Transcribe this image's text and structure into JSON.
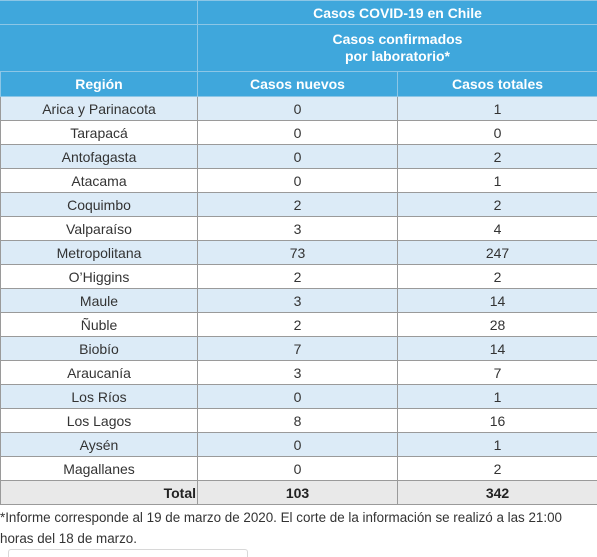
{
  "table": {
    "title": "Casos COVID-19 en Chile",
    "subtitle_line1": "Casos confirmados",
    "subtitle_line2": "por laboratorio*",
    "columns": [
      "Región",
      "Casos nuevos",
      "Casos totales"
    ],
    "rows": [
      {
        "region": "Arica y Parinacota",
        "nuevos": "0",
        "totales": "1"
      },
      {
        "region": "Tarapacá",
        "nuevos": "0",
        "totales": "0"
      },
      {
        "region": "Antofagasta",
        "nuevos": "0",
        "totales": "2"
      },
      {
        "region": "Atacama",
        "nuevos": "0",
        "totales": "1"
      },
      {
        "region": "Coquimbo",
        "nuevos": "2",
        "totales": "2"
      },
      {
        "region": "Valparaíso",
        "nuevos": "3",
        "totales": "4"
      },
      {
        "region": "Metropolitana",
        "nuevos": "73",
        "totales": "247"
      },
      {
        "region": "O’Higgins",
        "nuevos": "2",
        "totales": "2"
      },
      {
        "region": "Maule",
        "nuevos": "3",
        "totales": "14"
      },
      {
        "region": "Ñuble",
        "nuevos": "2",
        "totales": "28"
      },
      {
        "region": "Biobío",
        "nuevos": "7",
        "totales": "14"
      },
      {
        "region": "Araucanía",
        "nuevos": "3",
        "totales": "7"
      },
      {
        "region": "Los Ríos",
        "nuevos": "0",
        "totales": "1"
      },
      {
        "region": "Los Lagos",
        "nuevos": "8",
        "totales": "16"
      },
      {
        "region": "Aysén",
        "nuevos": "0",
        "totales": "1"
      },
      {
        "region": "Magallanes",
        "nuevos": "0",
        "totales": "2"
      }
    ],
    "total": {
      "label": "Total",
      "nuevos": "103",
      "totales": "342"
    }
  },
  "footnote": {
    "line1": "*Informe corresponde al 19 de marzo de 2020. El corte de la información se realizó a las 21:00",
    "line2": "horas del 18 de marzo."
  }
}
